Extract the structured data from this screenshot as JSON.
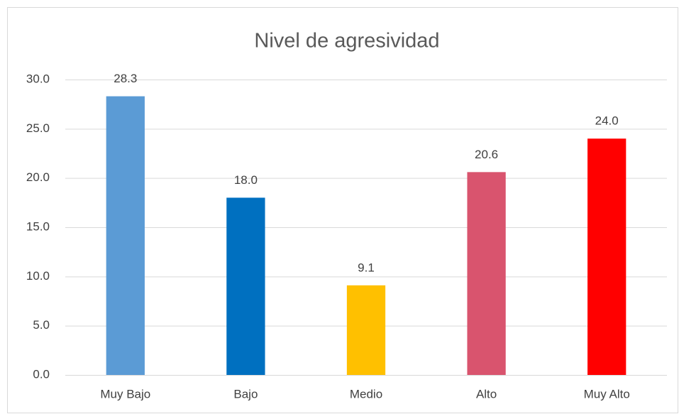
{
  "chart_data": {
    "type": "bar",
    "title": "Nivel de agresividad",
    "categories": [
      "Muy Bajo",
      "Bajo",
      "Medio",
      "Alto",
      "Muy Alto"
    ],
    "values": [
      28.3,
      18.0,
      9.1,
      20.6,
      24.0
    ],
    "value_labels": [
      "28.3",
      "18.0",
      "9.1",
      "20.6",
      "24.0"
    ],
    "colors": [
      "#5b9bd5",
      "#0070c0",
      "#ffc000",
      "#d9546e",
      "#ff0000"
    ],
    "ylim": [
      0,
      30
    ],
    "yticks": [
      {
        "value": 0,
        "label": "0.0"
      },
      {
        "value": 5,
        "label": "5.0"
      },
      {
        "value": 10,
        "label": "10.0"
      },
      {
        "value": 15,
        "label": "15.0"
      },
      {
        "value": 20,
        "label": "20.0"
      },
      {
        "value": 25,
        "label": "25.0"
      },
      {
        "value": 30,
        "label": "30.0"
      }
    ],
    "grid": true
  }
}
